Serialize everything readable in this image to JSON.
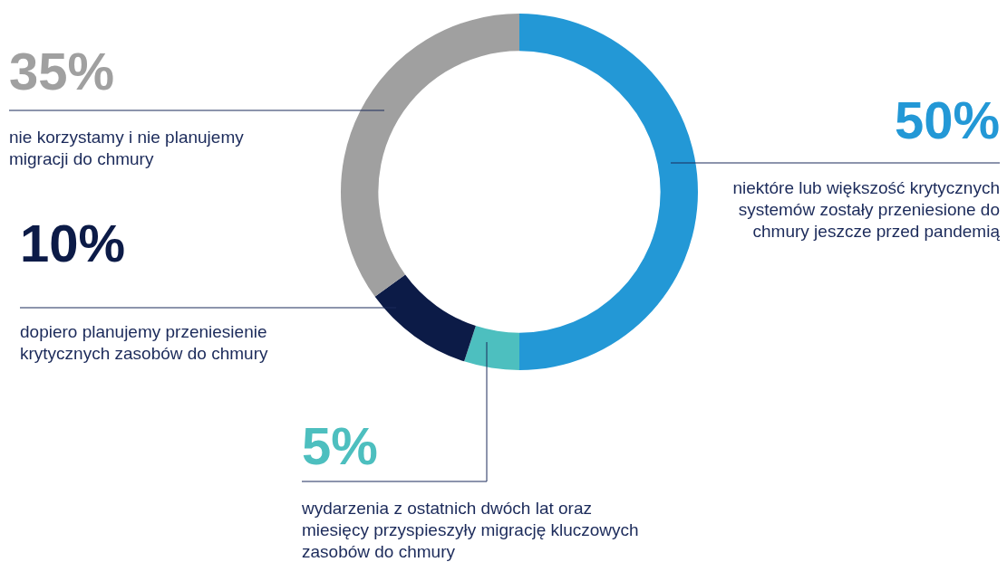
{
  "chart_data": {
    "type": "donut",
    "categories": [
      "niektóre lub większość krytycznych systemów zostały przeniesione do chmury jeszcze przed pandemią",
      "wydarzenia z ostatnich dwóch lat oraz miesięcy przyspieszyły migrację kluczowych zasobów do chmury",
      "dopiero planujemy przeniesienie krytycznych zasobów do chmury",
      "nie korzystamy i nie planujemy migracji do chmury"
    ],
    "values": [
      50,
      5,
      10,
      35
    ],
    "value_labels": [
      "50%",
      "5%",
      "10%",
      "35%"
    ],
    "colors": [
      "#2398d6",
      "#4dbfbf",
      "#0c1b47",
      "#a0a0a0"
    ]
  }
}
